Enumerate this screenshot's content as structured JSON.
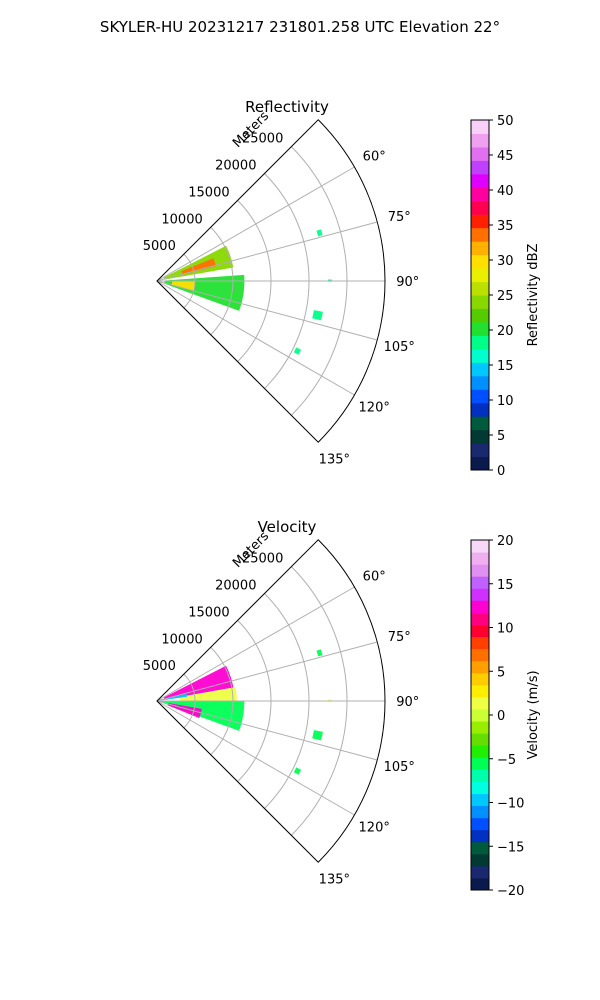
{
  "figure": {
    "suptitle": "SKYLER-HU  20231217  231801.258 UTC Elevation 22°"
  },
  "chart_data": [
    {
      "type": "polar-sector",
      "title": "Reflectivity",
      "radial_label": "Meters",
      "radial_ticks": [
        5000,
        10000,
        15000,
        20000,
        25000
      ],
      "radial_max": 30000,
      "angular_ticks": [
        "60°",
        "75°",
        "90°",
        "105°",
        "120°",
        "135°"
      ],
      "angular_tick_values": [
        60,
        75,
        90,
        105,
        120,
        135
      ],
      "theta_range": [
        45,
        135
      ],
      "grid": true,
      "colorbar": {
        "label": "Reflectivity dBZ",
        "range": [
          0,
          50
        ],
        "ticks": [
          "0",
          "5",
          "10",
          "15",
          "20",
          "25",
          "30",
          "35",
          "40",
          "45",
          "50"
        ],
        "colors": [
          "#0b1a4d",
          "#1a2870",
          "#003a33",
          "#005a3c",
          "#0030c0",
          "#0050ff",
          "#0090ff",
          "#00c8ff",
          "#00ffcc",
          "#00ff88",
          "#22e030",
          "#55cc00",
          "#88d800",
          "#bbe000",
          "#e8f000",
          "#ffe000",
          "#ffb000",
          "#ff7000",
          "#ff2000",
          "#ff0050",
          "#ff00a0",
          "#e000ff",
          "#c040ff",
          "#e070f0",
          "#f0a0f0",
          "#f8d0f8"
        ]
      },
      "echo_regions": [
        {
          "azimuth": [
            63,
            80
          ],
          "range": [
            1000,
            10200
          ],
          "value": 24
        },
        {
          "azimuth": [
            86,
            110
          ],
          "range": [
            1000,
            11500
          ],
          "value": 20
        },
        {
          "azimuth": [
            68,
            76
          ],
          "range": [
            3500,
            8000
          ],
          "value": 33
        },
        {
          "azimuth": [
            90,
            105
          ],
          "range": [
            2000,
            5000
          ],
          "value": 30
        },
        {
          "azimuth": [
            72.5,
            74.5
          ],
          "range": [
            22000,
            22600
          ],
          "value": 19
        },
        {
          "azimuth": [
            89.5,
            90.2
          ],
          "range": [
            22500,
            23000
          ],
          "value": 19
        },
        {
          "azimuth": [
            100.5,
            103.5
          ],
          "range": [
            21000,
            22200
          ],
          "value": 19
        },
        {
          "azimuth": [
            115.5,
            117.5
          ],
          "range": [
            20300,
            21000
          ],
          "value": 19
        }
      ]
    },
    {
      "type": "polar-sector",
      "title": "Velocity",
      "radial_label": "Meters",
      "radial_ticks": [
        5000,
        10000,
        15000,
        20000,
        25000
      ],
      "radial_max": 30000,
      "angular_ticks": [
        "60°",
        "75°",
        "90°",
        "105°",
        "120°",
        "135°"
      ],
      "angular_tick_values": [
        60,
        75,
        90,
        105,
        120,
        135
      ],
      "theta_range": [
        45,
        135
      ],
      "grid": true,
      "colorbar": {
        "label": "Velocity (m/s)",
        "range": [
          -20,
          20
        ],
        "ticks": [
          "−20",
          "−15",
          "−10",
          "−5",
          "0",
          "5",
          "10",
          "15",
          "20"
        ],
        "colors": [
          "#0b1a4d",
          "#1a2870",
          "#003a33",
          "#005a3c",
          "#0030c0",
          "#0050ff",
          "#0090ff",
          "#00c8ff",
          "#00ffe0",
          "#00ffaa",
          "#00ff55",
          "#22ee00",
          "#66dd00",
          "#99ee00",
          "#ccff33",
          "#eeff44",
          "#ffee00",
          "#ffcc00",
          "#ffa000",
          "#ff7000",
          "#ff4000",
          "#ff0030",
          "#ff0080",
          "#ff00d0",
          "#d030ff",
          "#c060ff",
          "#e090f0",
          "#f0b0f0",
          "#f8d8f8"
        ]
      },
      "echo_regions": [
        {
          "azimuth": [
            63,
            80
          ],
          "range": [
            1000,
            10200
          ],
          "value": 12
        },
        {
          "azimuth": [
            80,
            90
          ],
          "range": [
            3000,
            10500
          ],
          "value": 2
        },
        {
          "azimuth": [
            90,
            110
          ],
          "range": [
            500,
            11500
          ],
          "value": -6
        },
        {
          "azimuth": [
            100,
            112
          ],
          "range": [
            1500,
            6000
          ],
          "value": 12
        },
        {
          "azimuth": [
            76,
            82
          ],
          "range": [
            500,
            4000
          ],
          "value": -10
        },
        {
          "azimuth": [
            72.5,
            74.5
          ],
          "range": [
            22000,
            22600
          ],
          "value": -5
        },
        {
          "azimuth": [
            89.5,
            90.2
          ],
          "range": [
            22500,
            23000
          ],
          "value": 2
        },
        {
          "azimuth": [
            100.5,
            103.5
          ],
          "range": [
            21000,
            22200
          ],
          "value": -5
        },
        {
          "azimuth": [
            115.5,
            117.5
          ],
          "range": [
            20300,
            21000
          ],
          "value": -5
        }
      ]
    }
  ]
}
